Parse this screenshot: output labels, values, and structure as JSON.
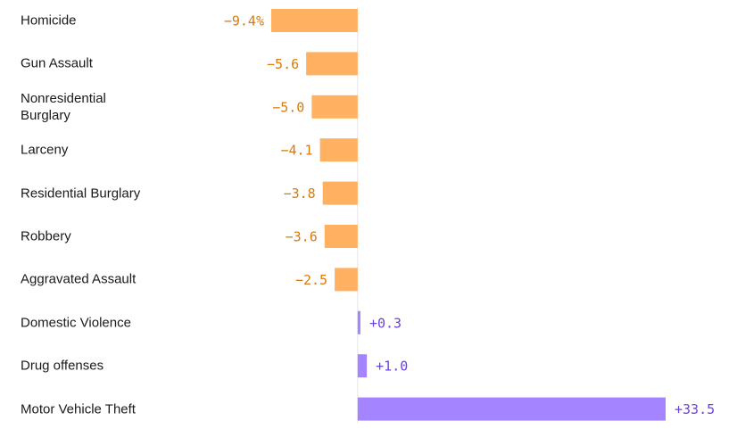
{
  "chart_data": {
    "type": "bar",
    "orientation": "horizontal",
    "categories": [
      "Homicide",
      "Gun Assault",
      "Nonresidential Burglary",
      "Larceny",
      "Residential Burglary",
      "Robbery",
      "Aggravated Assault",
      "Domestic Violence",
      "Drug offenses",
      "Motor Vehicle Theft"
    ],
    "values": [
      -9.4,
      -5.6,
      -5.0,
      -4.1,
      -3.8,
      -3.6,
      -2.5,
      0.3,
      1.0,
      33.5
    ],
    "value_labels": [
      "−9.4%",
      "−5.6",
      "−5.0",
      "−4.1",
      "−3.8",
      "−3.6",
      "−2.5",
      "+0.3",
      "+1.0",
      "+33.5"
    ],
    "colors": [
      "#ffb161",
      "#ffb161",
      "#ffb161",
      "#ffb161",
      "#ffb161",
      "#ffb161",
      "#ffb161",
      "#a585ff",
      "#a585ff",
      "#a585ff"
    ],
    "label_colors": [
      "#d97a0c",
      "#d97a0c",
      "#d97a0c",
      "#d97a0c",
      "#d97a0c",
      "#d97a0c",
      "#d97a0c",
      "#6b40e0",
      "#6b40e0",
      "#6b40e0"
    ]
  }
}
